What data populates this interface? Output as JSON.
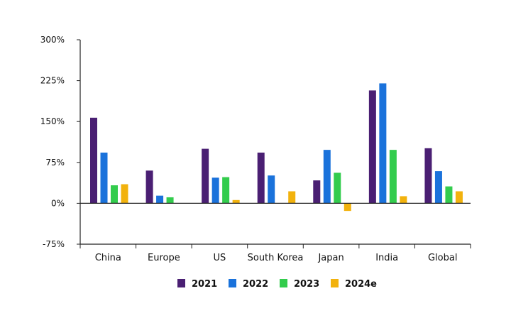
{
  "chart_data": {
    "type": "bar",
    "title": "",
    "xlabel": "",
    "ylabel": "",
    "categories": [
      "China",
      "Europe",
      "US",
      "South Korea",
      "Japan",
      "India",
      "Global"
    ],
    "series": [
      {
        "name": "2021",
        "color": "#4a1f73",
        "values": [
          157,
          60,
          100,
          93,
          42,
          207,
          101
        ]
      },
      {
        "name": "2022",
        "color": "#1a72db",
        "values": [
          93,
          14,
          47,
          51,
          98,
          220,
          59
        ]
      },
      {
        "name": "2023",
        "color": "#33cc4d",
        "values": [
          33,
          11,
          48,
          0,
          56,
          98,
          31
        ]
      },
      {
        "name": "2024e",
        "color": "#f2b20d",
        "values": [
          35,
          0,
          6,
          22,
          -14,
          13,
          22
        ]
      }
    ],
    "ylim": [
      -75,
      300
    ],
    "yticks": [
      -75,
      0,
      75,
      150,
      225,
      300
    ],
    "ytick_labels": [
      "-75%",
      "0%",
      "75%",
      "150%",
      "225%",
      "300%"
    ],
    "grid": false,
    "legend_position": "bottom-center"
  }
}
